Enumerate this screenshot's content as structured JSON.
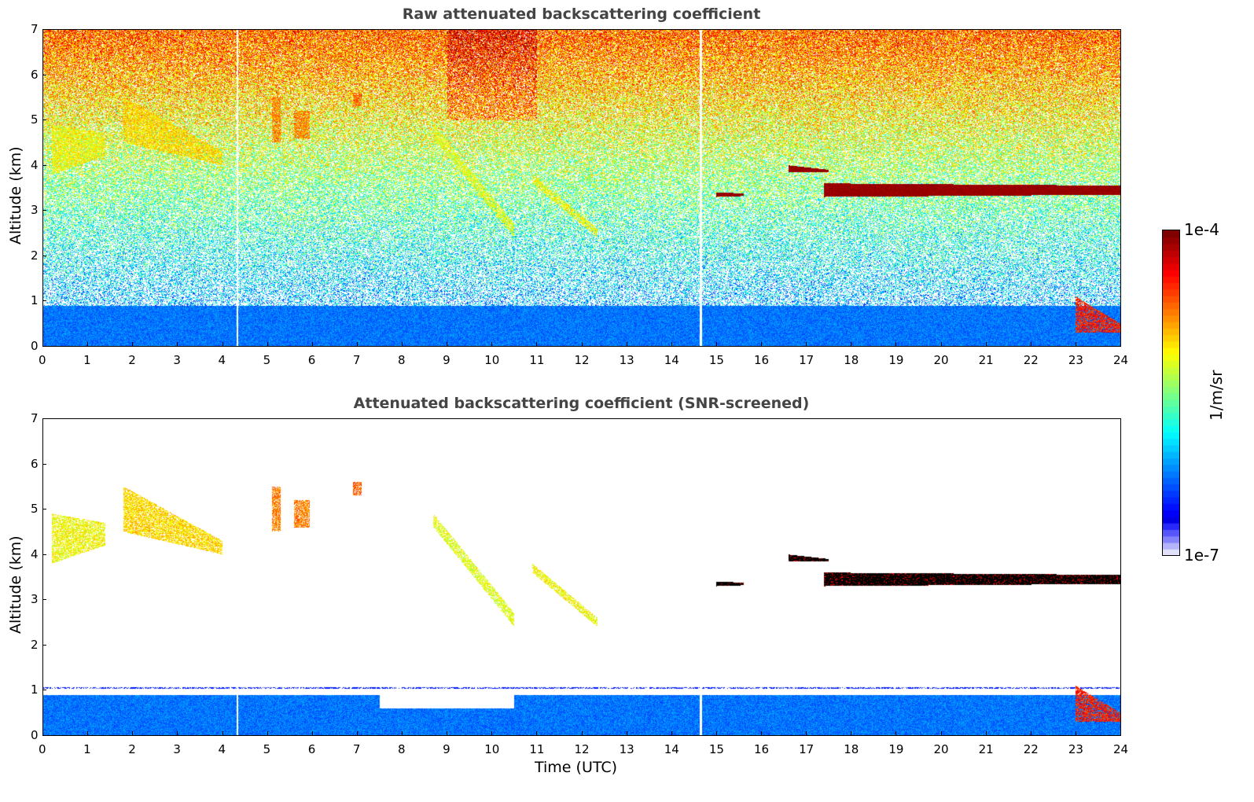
{
  "chart_data": [
    {
      "type": "heatmap",
      "title": "Raw attenuated backscattering coefficient",
      "ylabel": "Altitude (km)",
      "xlabel": "",
      "xlim": [
        0,
        24
      ],
      "ylim": [
        0,
        7
      ],
      "xticks": [
        "0",
        "1",
        "2",
        "3",
        "4",
        "5",
        "6",
        "7",
        "8",
        "9",
        "10",
        "11",
        "12",
        "13",
        "14",
        "15",
        "16",
        "17",
        "18",
        "19",
        "20",
        "21",
        "22",
        "23",
        "24"
      ],
      "yticks": [
        "0",
        "1",
        "2",
        "3",
        "4",
        "5",
        "6",
        "7"
      ],
      "screened": false
    },
    {
      "type": "heatmap",
      "title": "Attenuated backscattering coefficient (SNR-screened)",
      "ylabel": "Altitude (km)",
      "xlabel": "Time (UTC)",
      "xlim": [
        0,
        24
      ],
      "ylim": [
        0,
        7
      ],
      "xticks": [
        "0",
        "1",
        "2",
        "3",
        "4",
        "5",
        "6",
        "7",
        "8",
        "9",
        "10",
        "11",
        "12",
        "13",
        "14",
        "15",
        "16",
        "17",
        "18",
        "19",
        "20",
        "21",
        "22",
        "23",
        "24"
      ],
      "yticks": [
        "0",
        "1",
        "2",
        "3",
        "4",
        "5",
        "6",
        "7"
      ],
      "screened": true
    }
  ],
  "colorbar": {
    "label": "1/m/sr",
    "max_label": "1e-4",
    "min_label": "1e-7",
    "scale": "log",
    "colormap": "jet"
  },
  "gaps_utc": [
    4.33,
    14.65
  ],
  "features": [
    {
      "name": "boundary-layer",
      "t0": 0,
      "t1": 24,
      "z0": [
        0,
        0
      ],
      "z1": [
        0.9,
        0.9
      ],
      "level": 0.2
    },
    {
      "name": "cirrus-a",
      "t0": 0.2,
      "t1": 1.4,
      "z0": [
        3.8,
        4.2
      ],
      "z1": [
        4.9,
        4.7
      ],
      "level": 0.62
    },
    {
      "name": "cirrus-b",
      "t0": 1.8,
      "t1": 4.0,
      "z0": [
        4.5,
        4.0
      ],
      "z1": [
        5.5,
        4.3
      ],
      "level": 0.66
    },
    {
      "name": "cirrus-c",
      "t0": 5.1,
      "t1": 5.3,
      "z0": [
        4.5,
        4.5
      ],
      "z1": [
        5.5,
        5.5
      ],
      "level": 0.75
    },
    {
      "name": "cirrus-d",
      "t0": 5.6,
      "t1": 5.95,
      "z0": [
        4.6,
        4.6
      ],
      "z1": [
        5.2,
        5.2
      ],
      "level": 0.75
    },
    {
      "name": "cirrus-e",
      "t0": 6.9,
      "t1": 7.1,
      "z0": [
        5.3,
        5.3
      ],
      "z1": [
        5.6,
        5.6
      ],
      "level": 0.78
    },
    {
      "name": "fall-a",
      "t0": 8.7,
      "t1": 10.5,
      "z0": [
        4.6,
        2.4
      ],
      "z1": [
        4.9,
        2.7
      ],
      "level": 0.6
    },
    {
      "name": "fall-b",
      "t0": 10.9,
      "t1": 12.35,
      "z0": [
        3.6,
        2.4
      ],
      "z1": [
        3.8,
        2.6
      ],
      "level": 0.62
    },
    {
      "name": "liquid-cloud",
      "t0": 17.4,
      "t1": 24,
      "z0": [
        3.3,
        3.35
      ],
      "z1": [
        3.6,
        3.55
      ],
      "level": 1.0
    },
    {
      "name": "liquid-b",
      "t0": 16.6,
      "t1": 17.5,
      "z0": [
        3.85,
        3.85
      ],
      "z1": [
        4.0,
        3.9
      ],
      "level": 1.0
    },
    {
      "name": "liquid-c",
      "t0": 15.0,
      "t1": 15.6,
      "z0": [
        3.3,
        3.32
      ],
      "z1": [
        3.4,
        3.38
      ],
      "level": 1.0
    },
    {
      "name": "low-cloud",
      "t0": 23.0,
      "t1": 24,
      "z0": [
        0.3,
        0.3
      ],
      "z1": [
        1.1,
        0.5
      ],
      "level": 0.85
    }
  ]
}
